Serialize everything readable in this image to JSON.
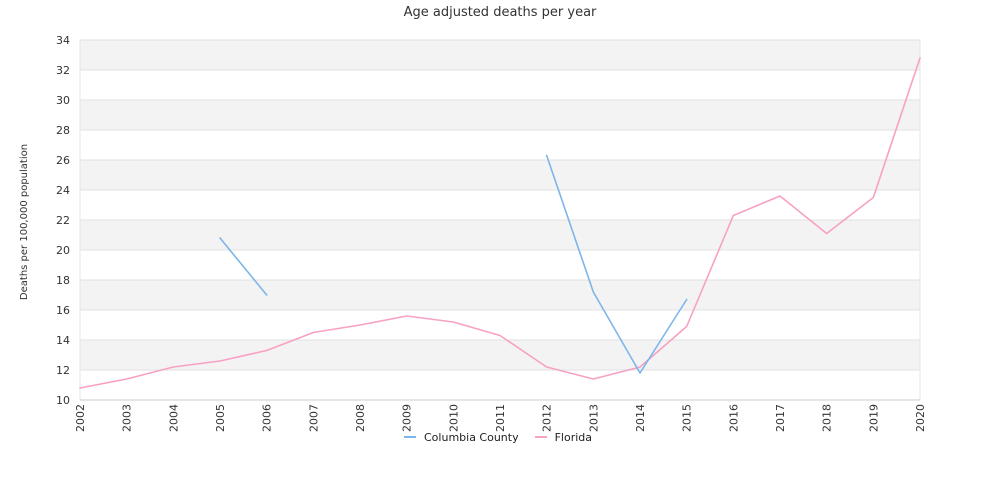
{
  "chart_data": {
    "type": "line",
    "title": "Age adjusted deaths per year",
    "xlabel": "",
    "ylabel": "Deaths per 100,000 population",
    "x": [
      "2002",
      "2003",
      "2004",
      "2005",
      "2006",
      "2007",
      "2008",
      "2009",
      "2010",
      "2011",
      "2012",
      "2013",
      "2014",
      "2015",
      "2016",
      "2017",
      "2018",
      "2019",
      "2020"
    ],
    "x_tick_labels": [
      "2002",
      "2003",
      "2004",
      "2005",
      "2006",
      "2007",
      "2008",
      "2009",
      "2010",
      "2011",
      "2012",
      "2013",
      "2014",
      "2015",
      "2016",
      "2017",
      "2018",
      "2019",
      "2020"
    ],
    "ylim": [
      10,
      34
    ],
    "yticks": [
      10,
      12,
      14,
      16,
      18,
      20,
      22,
      24,
      26,
      28,
      30,
      32,
      34
    ],
    "grid": true,
    "legend_position": "bottom",
    "series": [
      {
        "name": "Columbia County",
        "color": "#7cb5ec",
        "values": [
          null,
          null,
          null,
          20.8,
          17.0,
          null,
          null,
          null,
          null,
          null,
          26.3,
          17.2,
          11.8,
          16.7,
          null,
          null,
          null,
          null,
          null
        ]
      },
      {
        "name": "Florida",
        "color": "#f7a1c4",
        "values": [
          10.8,
          11.4,
          12.2,
          12.6,
          13.3,
          14.5,
          15.0,
          15.6,
          15.2,
          14.3,
          12.2,
          11.4,
          12.2,
          14.9,
          22.3,
          23.6,
          21.1,
          23.5,
          32.8
        ]
      }
    ]
  }
}
